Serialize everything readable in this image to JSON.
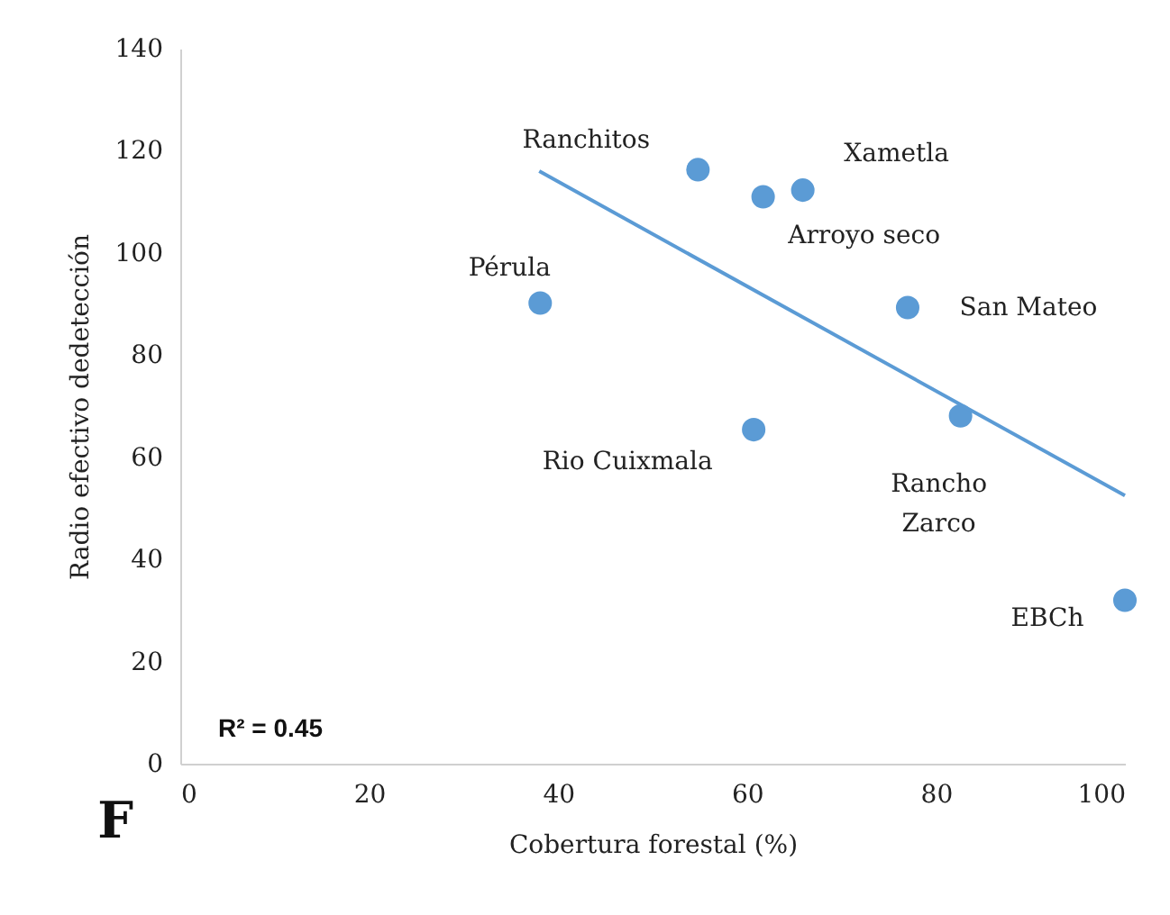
{
  "chart_data": {
    "type": "scatter",
    "xlabel": "Cobertura forestal (%)",
    "ylabel": "Radio efectivo dedetección",
    "series": [
      {
        "marker": "circle",
        "color": "#5b9bd5",
        "x": [
          54.8,
          61.7,
          65.9,
          38.1,
          77.0,
          60.7,
          82.6,
          100
        ],
        "values": [
          116.3,
          111.0,
          112.3,
          90.2,
          89.3,
          65.4,
          68.1,
          32.0
        ]
      },
      {
        "type": "line",
        "marker": "none",
        "color": "#5b9bd5",
        "x": [
          38,
          100
        ],
        "values": [
          116,
          52.5
        ]
      }
    ],
    "annotations": [
      {
        "text": "Ranchitos",
        "x": 54.8,
        "y": 116.3
      },
      {
        "text": "Arroyo seco",
        "x": 61.7,
        "y": 111.0
      },
      {
        "text": "Xametla",
        "x": 65.9,
        "y": 112.3
      },
      {
        "text": "Pérula",
        "x": 38.1,
        "y": 90.2
      },
      {
        "text": "San Mateo",
        "x": 77.0,
        "y": 89.3
      },
      {
        "text": "Rio Cuixmala",
        "x": 60.7,
        "y": 65.4
      },
      {
        "text": "Rancho Zarco",
        "x": 82.6,
        "y": 68.1
      },
      {
        "text": "EBCh",
        "x": 100,
        "y": 32.0
      },
      "R² = 0.45",
      "F"
    ],
    "xlim": [
      0,
      100
    ],
    "xticks": [
      0,
      20,
      40,
      60,
      80,
      100
    ],
    "ylim": [
      0,
      140
    ],
    "yticks": [
      0,
      20,
      40,
      60,
      80,
      100,
      120,
      140
    ],
    "grid": false
  }
}
